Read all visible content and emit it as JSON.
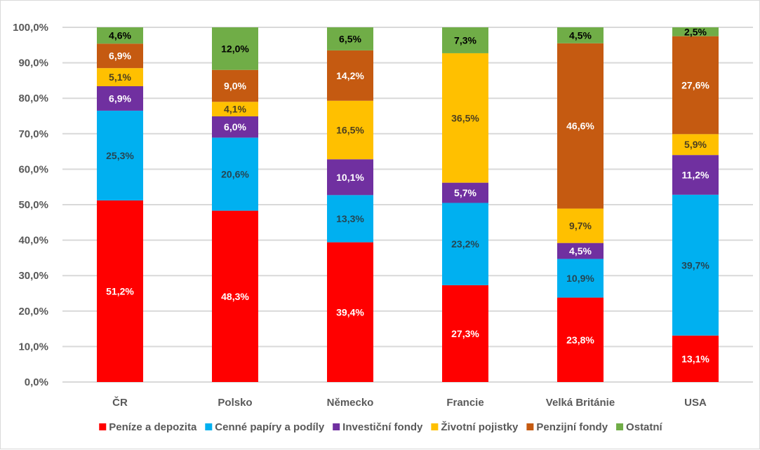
{
  "chart_data": {
    "type": "bar",
    "stacked": true,
    "title": "",
    "xlabel": "",
    "ylabel": "",
    "ylim": [
      0,
      100
    ],
    "y_ticks": [
      "0,0%",
      "10,0%",
      "20,0%",
      "30,0%",
      "40,0%",
      "50,0%",
      "60,0%",
      "70,0%",
      "80,0%",
      "90,0%",
      "100,0%"
    ],
    "grid": true,
    "legend_position": "bottom",
    "categories": [
      "ČR",
      "Polsko",
      "Německo",
      "Francie",
      "Velká Británie",
      "USA"
    ],
    "series": [
      {
        "name": "Peníze a depozita",
        "color": "#ff0000",
        "label_color": "#ffffff",
        "values": [
          51.2,
          48.3,
          39.4,
          27.3,
          23.8,
          13.1
        ]
      },
      {
        "name": "Cenné papíry a podíly",
        "color": "#00b0f0",
        "label_color": "#264653",
        "values": [
          25.3,
          20.6,
          13.3,
          23.2,
          10.9,
          39.7
        ]
      },
      {
        "name": "Investiční fondy",
        "color": "#7030a0",
        "label_color": "#ffffff",
        "values": [
          6.9,
          6.0,
          10.1,
          5.7,
          4.5,
          11.2
        ]
      },
      {
        "name": "Životní pojistky",
        "color": "#ffc000",
        "label_color": "#4d4020",
        "values": [
          5.1,
          4.1,
          16.5,
          36.5,
          9.7,
          5.9
        ]
      },
      {
        "name": "Penzijní fondy",
        "color": "#c55a11",
        "label_color": "#ffffff",
        "values": [
          6.9,
          9.0,
          14.2,
          0,
          46.6,
          27.6
        ]
      },
      {
        "name": "Ostatní",
        "color": "#70ad47",
        "label_color": "#000000",
        "values": [
          4.6,
          12.0,
          6.5,
          7.3,
          4.5,
          2.5
        ]
      }
    ]
  }
}
